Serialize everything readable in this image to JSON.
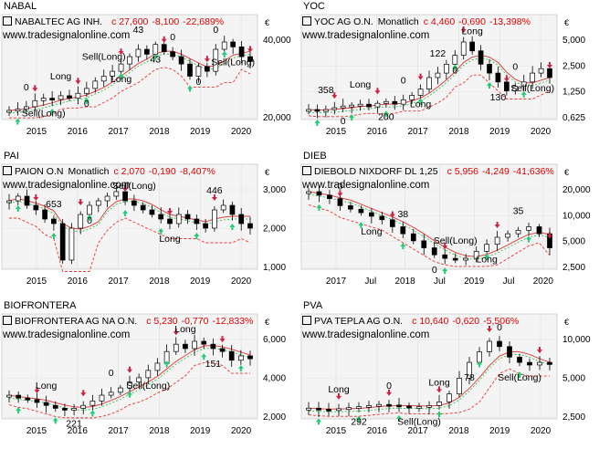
{
  "colors": {
    "up_candle": "#ffffff",
    "down_candle": "#000000",
    "ma_line": "#d44",
    "stop_line": "#ee3333",
    "trail_line": "#22bb44",
    "buy_arrow": "#22cc77",
    "sell_arrow": "#cc2244",
    "plot_bg": "#f4f4f4"
  },
  "panels": [
    {
      "tab": "NABAL",
      "name": "NABALTEC AG INH.",
      "period": "",
      "close": "c 27,600",
      "change": "-8,100",
      "pct": "-22,689%",
      "watermark": "www.tradesignalonline.com",
      "currency": "€",
      "chart_data": {
        "type": "line",
        "x_labels": [
          "2015",
          "2016",
          "2017",
          "2018",
          "2019",
          "2020"
        ],
        "y_ticks": [
          "40,000",
          "20,000"
        ],
        "annotations": [
          "0",
          "Sell(Long)",
          "Long",
          "0",
          "Sell(Long)",
          "Long",
          "43",
          "43",
          "0",
          "0",
          "0",
          "Sell(Long)"
        ],
        "series": [
          {
            "values": [
              8,
              8.5,
              9.5,
              12,
              13,
              12.5,
              14,
              13,
              15,
              17,
              20,
              22,
              24,
              27,
              30,
              33,
              31,
              35,
              32,
              30,
              27,
              22,
              26,
              24,
              33,
              36,
              34,
              30,
              28
            ]
          }
        ]
      }
    },
    {
      "tab": "YOC",
      "name": "YOC AG O.N.",
      "period": "Monatlich",
      "close": "c 4,460",
      "change": "-0,690",
      "pct": "-13,398%",
      "watermark": "www.tradesignalonline.com",
      "currency": "€",
      "chart_data": {
        "type": "line",
        "x_labels": [
          "2015",
          "2016",
          "2017",
          "2018",
          "2019",
          "2020"
        ],
        "y_ticks": [
          "5,000",
          "2,500",
          "1,250",
          "0,625"
        ],
        "annotations": [
          "358",
          "0",
          "Long",
          "200",
          "0",
          "Long",
          "122",
          "0",
          "Long",
          "130",
          "0",
          "Sell(Long)"
        ],
        "series": [
          {
            "values": [
              0.9,
              0.8,
              0.9,
              1.1,
              1.3,
              1.4,
              1.5,
              1.2,
              1.6,
              1.8,
              1.5,
              2,
              2.5,
              3.2,
              4.5,
              5,
              6,
              7,
              8.5,
              7.5,
              6,
              5,
              4,
              3,
              3.5,
              4,
              5,
              5.5,
              4.5
            ]
          }
        ]
      }
    },
    {
      "tab": "PAI",
      "name": "PAION O.N",
      "period": "Monatlich",
      "close": "c 2,070",
      "change": "-0,190",
      "pct": "-8,407%",
      "watermark": "www.tradesignalonline.com",
      "currency": "€",
      "chart_data": {
        "type": "line",
        "x_labels": [
          "2015",
          "2016",
          "2017",
          "2018",
          "2019",
          "2020"
        ],
        "y_ticks": [
          "3,000",
          "2,000",
          "1,000"
        ],
        "annotations": [
          "653",
          "0",
          "Sell(Long)",
          "Long",
          "446"
        ],
        "series": [
          {
            "values": [
              2.6,
              2.7,
              2.5,
              2.4,
              2.2,
              2.1,
              1.3,
              2,
              2.3,
              2.5,
              2.6,
              2.7,
              2.8,
              2.6,
              2.5,
              2.4,
              2.3,
              2.2,
              2.1,
              2.3,
              2.2,
              2.1,
              2,
              2.4,
              2.5,
              2.3,
              2.1,
              2
            ]
          }
        ]
      }
    },
    {
      "tab": "DIEB",
      "name": "DIEBOLD NIXDORF DL 1,25",
      "period": "",
      "close": "c 5,956",
      "change": "-4,249",
      "pct": "-41,636%",
      "watermark": "www.tradesignalonline.com",
      "currency": "€",
      "chart_data": {
        "type": "line",
        "x_labels": [
          "2017",
          "Jul",
          "2018",
          "Jul",
          "2019",
          "Jul",
          "2020"
        ],
        "y_ticks": [
          "20,000",
          "10,000",
          "5,000",
          "2,500"
        ],
        "annotations": [
          "0",
          "Long",
          "38",
          "0",
          "Sell(Long)",
          "Long",
          "35"
        ],
        "series": [
          {
            "values": [
              22,
              21,
              20,
              18,
              17,
              16,
              15,
              14,
              12,
              10,
              8,
              6,
              4,
              3,
              2.5,
              3,
              5,
              7,
              9,
              10,
              11,
              12,
              10,
              6
            ]
          }
        ]
      }
    },
    {
      "tab": "BIOFRONTERA",
      "name": "BIOFRONTERA AG NA O.N.",
      "period": "",
      "close": "c 5,230",
      "change": "-0,770",
      "pct": "-12,833%",
      "watermark": "www.tradesignalonline.com",
      "currency": "€",
      "chart_data": {
        "type": "line",
        "x_labels": [
          "2015",
          "2016",
          "2017",
          "2018",
          "2019",
          "2020"
        ],
        "y_ticks": [
          "6,000",
          "4,000",
          "2,000"
        ],
        "annotations": [
          "Long",
          "221",
          "0",
          "Sell(Long)",
          "Long",
          "151"
        ],
        "series": [
          {
            "values": [
              2.8,
              2.6,
              2.5,
              2.3,
              2.1,
              1.9,
              1.8,
              1.9,
              2.1,
              2.4,
              2.8,
              3,
              3.3,
              3.7,
              4,
              4.5,
              5,
              5.8,
              6.3,
              6,
              6.5,
              6.3,
              6,
              5.8,
              5.2,
              5.5,
              5.3
            ]
          }
        ]
      }
    },
    {
      "tab": "PVA",
      "name": "PVA TEPLA AG O.N.",
      "period": "",
      "close": "c 10,640",
      "change": "-0,620",
      "pct": "-5,506%",
      "watermark": "www.tradesignalonline.com",
      "currency": "€",
      "chart_data": {
        "type": "line",
        "x_labels": [
          "2015",
          "2016",
          "2017",
          "2018",
          "2019",
          "2020"
        ],
        "y_ticks": [
          "10,000",
          "5,000",
          "2,500"
        ],
        "annotations": [
          "Long",
          "292",
          "0",
          "Sell(Long)",
          "Long",
          "78",
          "0",
          "Sell(Long)"
        ],
        "series": [
          {
            "values": [
              2.3,
              2.1,
              2,
              2.2,
              2.4,
              2.6,
              2.8,
              3,
              2.9,
              2.7,
              2.5,
              2.6,
              2.8,
              3.5,
              5,
              8,
              11,
              13,
              15,
              14,
              12,
              11,
              10.5,
              11,
              10.6
            ]
          }
        ]
      }
    }
  ]
}
